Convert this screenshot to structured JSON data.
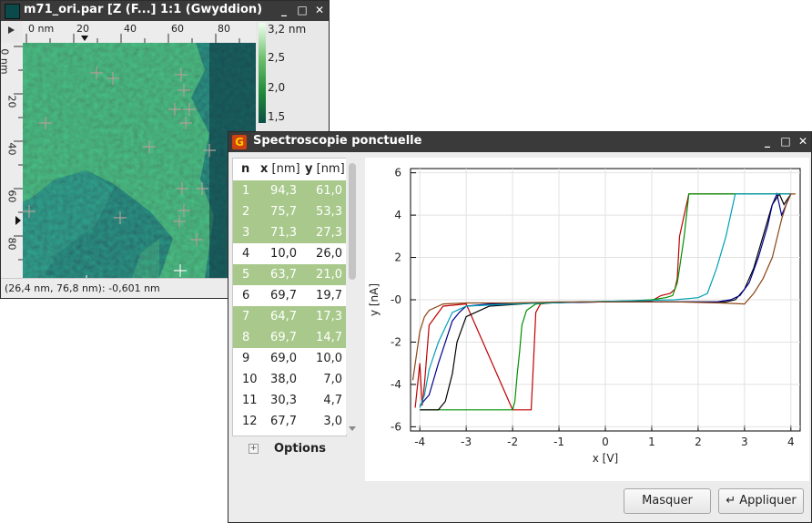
{
  "w1": {
    "title": "m71_ori.par [Z (F...] 1:1 (Gwyddion)",
    "hruler": [
      "0 nm",
      "20",
      "40",
      "60",
      "80"
    ],
    "vruler": [
      "0 nm",
      "20",
      "40",
      "60",
      "80"
    ],
    "colorbar": [
      "3,2 nm",
      "2,5",
      "2,0",
      "1,5"
    ],
    "status": "(26,4 nm, 76,8 nm): -0,601 nm"
  },
  "w2": {
    "title": "Spectroscopie ponctuelle",
    "headers": {
      "n": "n",
      "x": "x",
      "xu": "[nm]",
      "y": "y",
      "yu": "[nm]"
    },
    "rows": [
      {
        "n": "1",
        "x": "94,3",
        "y": "61,0",
        "sel": true
      },
      {
        "n": "2",
        "x": "75,7",
        "y": "53,3",
        "sel": true
      },
      {
        "n": "3",
        "x": "71,3",
        "y": "27,3",
        "sel": true
      },
      {
        "n": "4",
        "x": "10,0",
        "y": "26,0",
        "sel": false
      },
      {
        "n": "5",
        "x": "63,7",
        "y": "21,0",
        "sel": true
      },
      {
        "n": "6",
        "x": "69,7",
        "y": "19,7",
        "sel": false
      },
      {
        "n": "7",
        "x": "64,7",
        "y": "17,3",
        "sel": true
      },
      {
        "n": "8",
        "x": "69,7",
        "y": "14,7",
        "sel": true
      },
      {
        "n": "9",
        "x": "69,0",
        "y": "10,0",
        "sel": false
      },
      {
        "n": "10",
        "x": "38,0",
        "y": "7,0",
        "sel": false
      },
      {
        "n": "11",
        "x": "30,3",
        "y": "4,7",
        "sel": false
      },
      {
        "n": "12",
        "x": "67,7",
        "y": "3,0",
        "sel": false
      }
    ],
    "options_label": "Options",
    "hide_button": "Masquer",
    "apply_button": "Appliquer",
    "plot": {
      "xlabel": "x [V]",
      "ylabel": "y [nA]",
      "xticks": [
        "-4",
        "-3",
        "-2",
        "-1",
        "0",
        "1",
        "2",
        "3",
        "4"
      ],
      "yticks": [
        "6",
        "4",
        "2",
        "-0",
        "-2",
        "-4",
        "-6"
      ]
    }
  },
  "colors": {
    "selection": "#a8c98b",
    "titlebar": "#3a3a3a"
  },
  "chart_data": {
    "type": "line",
    "xlabel": "x [V]",
    "ylabel": "y [nA]",
    "xlim": [
      -4.2,
      4.2
    ],
    "ylim": [
      -6.2,
      6.2
    ],
    "grid": true,
    "series": [
      {
        "color": "#c00000",
        "x": [
          -4.1,
          -4.0,
          -3.95,
          -3.9,
          -3.8,
          -3.7,
          -3.5,
          -3.0,
          -2.0,
          -1.6,
          -1.55,
          -1.5,
          -1.4,
          -1.2,
          -0.5,
          0.5,
          1.0,
          1.2,
          1.4,
          1.5,
          1.55,
          1.6,
          1.8,
          3.0,
          4.0
        ],
        "y": [
          -5.1,
          -3.0,
          -5.0,
          -4.0,
          -1.2,
          -0.9,
          -0.3,
          -0.2,
          -5.2,
          -5.2,
          -3.0,
          -0.6,
          -0.2,
          -0.15,
          -0.1,
          -0.08,
          -0.05,
          0.2,
          0.3,
          0.5,
          1.0,
          3.0,
          5.0,
          5.0,
          5.0
        ]
      },
      {
        "color": "#009000",
        "x": [
          -4.0,
          -3.0,
          -2.0,
          -1.95,
          -1.9,
          -1.85,
          -1.8,
          -1.7,
          -1.5,
          -1.2,
          -0.5,
          0.5,
          1.0,
          1.3,
          1.45,
          1.55,
          1.6,
          1.7,
          1.8,
          2.5,
          3.0,
          4.0
        ],
        "y": [
          -5.2,
          -5.2,
          -5.2,
          -4.8,
          -3.5,
          -2.5,
          -1.2,
          -0.5,
          -0.2,
          -0.15,
          -0.1,
          -0.05,
          0.0,
          0.1,
          0.2,
          0.8,
          1.5,
          3.0,
          5.0,
          5.0,
          5.0,
          5.0
        ]
      },
      {
        "color": "#000000",
        "x": [
          -4.0,
          -3.6,
          -3.45,
          -3.3,
          -3.2,
          -3.0,
          -2.5,
          -1.5,
          0.0,
          1.5,
          2.3,
          2.6,
          2.8,
          3.0,
          3.2,
          3.4,
          3.6,
          3.75,
          3.85,
          4.0
        ],
        "y": [
          -5.2,
          -5.2,
          -4.8,
          -3.5,
          -2.0,
          -0.8,
          -0.3,
          -0.15,
          -0.1,
          -0.1,
          -0.1,
          -0.1,
          0.0,
          0.5,
          1.5,
          3.0,
          4.5,
          5.0,
          4.5,
          5.0
        ]
      },
      {
        "color": "#00008c",
        "x": [
          -4.0,
          -3.8,
          -3.6,
          -3.3,
          -3.15,
          -3.0,
          -2.5,
          -1.5,
          0.0,
          1.5,
          2.4,
          2.7,
          2.9,
          3.1,
          3.3,
          3.5,
          3.6,
          3.7,
          3.8,
          4.0
        ],
        "y": [
          -5.0,
          -4.5,
          -3.0,
          -1.0,
          -0.6,
          -0.3,
          -0.2,
          -0.15,
          -0.1,
          -0.1,
          -0.1,
          0.0,
          0.2,
          0.8,
          2.0,
          3.5,
          4.5,
          5.0,
          4.0,
          5.0
        ]
      },
      {
        "color": "#00a0b4",
        "x": [
          -4.0,
          -3.9,
          -3.8,
          -3.6,
          -3.3,
          -3.0,
          -2.0,
          -0.5,
          0.5,
          1.5,
          2.0,
          2.2,
          2.4,
          2.6,
          2.7,
          2.8,
          3.0,
          4.0
        ],
        "y": [
          -5.1,
          -4.5,
          -3.3,
          -2.0,
          -0.6,
          -0.3,
          -0.2,
          -0.1,
          -0.05,
          0.0,
          0.1,
          0.3,
          1.5,
          3.0,
          4.0,
          5.0,
          5.0,
          5.0
        ]
      },
      {
        "color": "#8b4513",
        "x": [
          -4.15,
          -4.0,
          -3.9,
          -3.8,
          -3.5,
          -3.0,
          -2.0,
          -1.0,
          0.0,
          1.5,
          2.5,
          3.0,
          3.2,
          3.4,
          3.6,
          3.8,
          3.9,
          4.0,
          4.1
        ],
        "y": [
          -3.8,
          -1.5,
          -0.8,
          -0.5,
          -0.2,
          -0.15,
          -0.15,
          -0.1,
          -0.1,
          -0.1,
          -0.15,
          -0.2,
          0.3,
          1.0,
          2.0,
          3.8,
          4.5,
          5.0,
          5.0
        ]
      }
    ]
  }
}
